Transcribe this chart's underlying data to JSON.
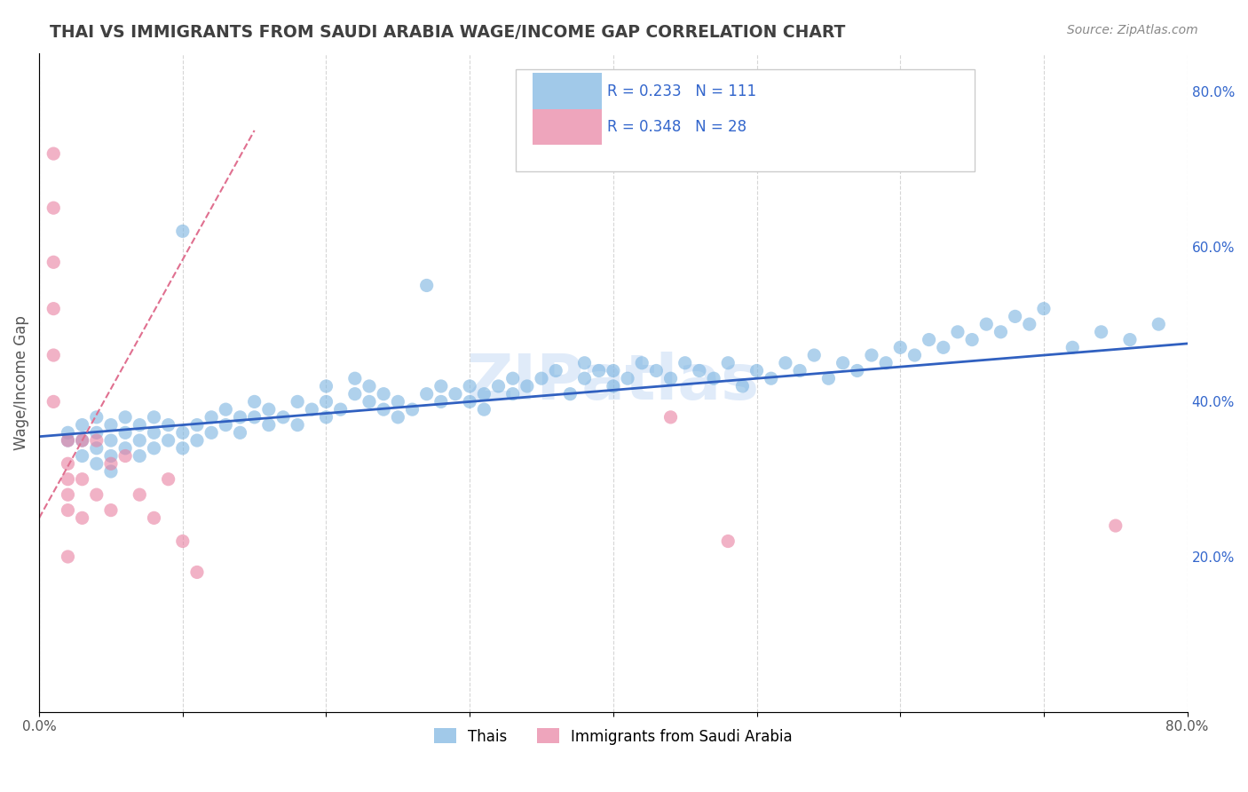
{
  "title": "THAI VS IMMIGRANTS FROM SAUDI ARABIA WAGE/INCOME GAP CORRELATION CHART",
  "source": "Source: ZipAtlas.com",
  "ylabel": "Wage/Income Gap",
  "xlabel": "",
  "xlim": [
    0.0,
    0.8
  ],
  "ylim": [
    0.0,
    0.85
  ],
  "x_ticks": [
    0.0,
    0.1,
    0.2,
    0.3,
    0.4,
    0.5,
    0.6,
    0.7,
    0.8
  ],
  "x_tick_labels": [
    "0.0%",
    "",
    "",
    "",
    "",
    "",
    "",
    "",
    "80.0%"
  ],
  "y_tick_labels_right": [
    "20.0%",
    "40.0%",
    "60.0%",
    "80.0%"
  ],
  "y_ticks_right": [
    0.2,
    0.4,
    0.6,
    0.8
  ],
  "watermark": "ZIPatlas",
  "legend_entries": [
    {
      "label": "R = 0.233   N = 111",
      "color": "#a8c8f0",
      "marker": "s"
    },
    {
      "label": "R = 0.348   N = 28",
      "color": "#f0a8c0",
      "marker": "s"
    }
  ],
  "series1_label": "Thais",
  "series2_label": "Immigrants from Saudi Arabia",
  "series1_color": "#7ab3e0",
  "series2_color": "#e87fa0",
  "series1_line_color": "#3060c0",
  "series2_line_color": "#e07090",
  "title_color": "#404040",
  "grid_color": "#cccccc",
  "background_color": "#ffffff",
  "thais_x": [
    0.02,
    0.02,
    0.03,
    0.03,
    0.03,
    0.04,
    0.04,
    0.04,
    0.04,
    0.05,
    0.05,
    0.05,
    0.05,
    0.06,
    0.06,
    0.06,
    0.07,
    0.07,
    0.07,
    0.08,
    0.08,
    0.08,
    0.09,
    0.09,
    0.1,
    0.1,
    0.1,
    0.11,
    0.11,
    0.12,
    0.12,
    0.13,
    0.13,
    0.14,
    0.14,
    0.15,
    0.15,
    0.16,
    0.16,
    0.17,
    0.18,
    0.18,
    0.19,
    0.2,
    0.2,
    0.2,
    0.21,
    0.22,
    0.22,
    0.23,
    0.23,
    0.24,
    0.24,
    0.25,
    0.25,
    0.26,
    0.27,
    0.27,
    0.28,
    0.28,
    0.29,
    0.3,
    0.3,
    0.31,
    0.31,
    0.32,
    0.33,
    0.33,
    0.34,
    0.35,
    0.36,
    0.37,
    0.38,
    0.38,
    0.39,
    0.4,
    0.4,
    0.41,
    0.42,
    0.43,
    0.44,
    0.45,
    0.46,
    0.47,
    0.48,
    0.49,
    0.5,
    0.51,
    0.52,
    0.53,
    0.54,
    0.55,
    0.56,
    0.57,
    0.58,
    0.59,
    0.6,
    0.61,
    0.62,
    0.63,
    0.64,
    0.65,
    0.66,
    0.67,
    0.68,
    0.69,
    0.7,
    0.72,
    0.74,
    0.76,
    0.78
  ],
  "thais_y": [
    0.35,
    0.36,
    0.33,
    0.35,
    0.37,
    0.32,
    0.34,
    0.36,
    0.38,
    0.31,
    0.33,
    0.35,
    0.37,
    0.34,
    0.36,
    0.38,
    0.33,
    0.35,
    0.37,
    0.34,
    0.36,
    0.38,
    0.35,
    0.37,
    0.34,
    0.36,
    0.62,
    0.35,
    0.37,
    0.36,
    0.38,
    0.37,
    0.39,
    0.36,
    0.38,
    0.38,
    0.4,
    0.37,
    0.39,
    0.38,
    0.4,
    0.37,
    0.39,
    0.38,
    0.4,
    0.42,
    0.39,
    0.41,
    0.43,
    0.4,
    0.42,
    0.39,
    0.41,
    0.38,
    0.4,
    0.39,
    0.41,
    0.55,
    0.4,
    0.42,
    0.41,
    0.4,
    0.42,
    0.39,
    0.41,
    0.42,
    0.43,
    0.41,
    0.42,
    0.43,
    0.44,
    0.41,
    0.43,
    0.45,
    0.44,
    0.42,
    0.44,
    0.43,
    0.45,
    0.44,
    0.43,
    0.45,
    0.44,
    0.43,
    0.45,
    0.42,
    0.44,
    0.43,
    0.45,
    0.44,
    0.46,
    0.43,
    0.45,
    0.44,
    0.46,
    0.45,
    0.47,
    0.46,
    0.48,
    0.47,
    0.49,
    0.48,
    0.5,
    0.49,
    0.51,
    0.5,
    0.52,
    0.47,
    0.49,
    0.48,
    0.5
  ],
  "saudi_x": [
    0.01,
    0.01,
    0.01,
    0.01,
    0.01,
    0.01,
    0.02,
    0.02,
    0.02,
    0.02,
    0.02,
    0.02,
    0.03,
    0.03,
    0.03,
    0.04,
    0.04,
    0.05,
    0.05,
    0.06,
    0.07,
    0.08,
    0.09,
    0.1,
    0.11,
    0.44,
    0.48,
    0.75
  ],
  "saudi_y": [
    0.72,
    0.65,
    0.58,
    0.52,
    0.46,
    0.4,
    0.35,
    0.32,
    0.3,
    0.28,
    0.26,
    0.2,
    0.35,
    0.3,
    0.25,
    0.35,
    0.28,
    0.32,
    0.26,
    0.33,
    0.28,
    0.25,
    0.3,
    0.22,
    0.18,
    0.38,
    0.22,
    0.24
  ],
  "trendline1_x": [
    0.0,
    0.8
  ],
  "trendline1_y": [
    0.355,
    0.475
  ],
  "trendline2_x": [
    0.0,
    0.15
  ],
  "trendline2_y": [
    0.25,
    0.75
  ]
}
